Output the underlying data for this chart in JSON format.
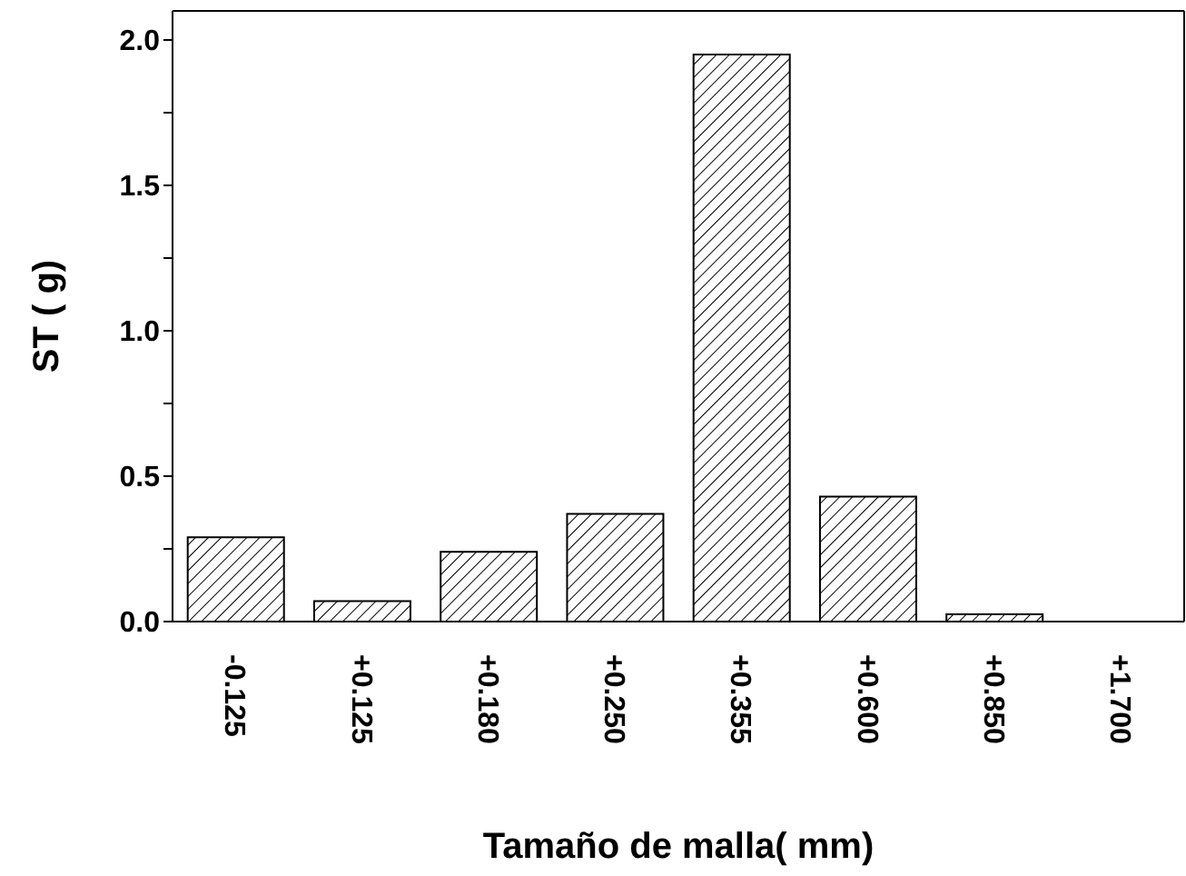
{
  "chart_data": {
    "type": "bar",
    "xlabel": "Tamaño de malla(   mm)",
    "ylabel": "ST (  g)",
    "categories": [
      "-0.125",
      "+0.125",
      "+0.180",
      "+0.250",
      "+0.355",
      "+0.600",
      "+0.850",
      "+1.700"
    ],
    "values": [
      0.29,
      0.07,
      0.24,
      0.37,
      1.95,
      0.43,
      0.025,
      0
    ],
    "color": "#000000",
    "ylim": [
      0,
      2.1
    ],
    "yticks": [
      {
        "value": 0,
        "label": "0.0"
      },
      {
        "value": 0.25,
        "label": null
      },
      {
        "value": 0.5,
        "label": "0.5"
      },
      {
        "value": 0.75,
        "label": null
      },
      {
        "value": 1,
        "label": "1.0"
      },
      {
        "value": 1.25,
        "label": null
      },
      {
        "value": 1.5,
        "label": "1.5"
      },
      {
        "value": 1.75,
        "label": null
      },
      {
        "value": 2,
        "label": "2.0"
      }
    ],
    "grid": false,
    "legend": false
  }
}
